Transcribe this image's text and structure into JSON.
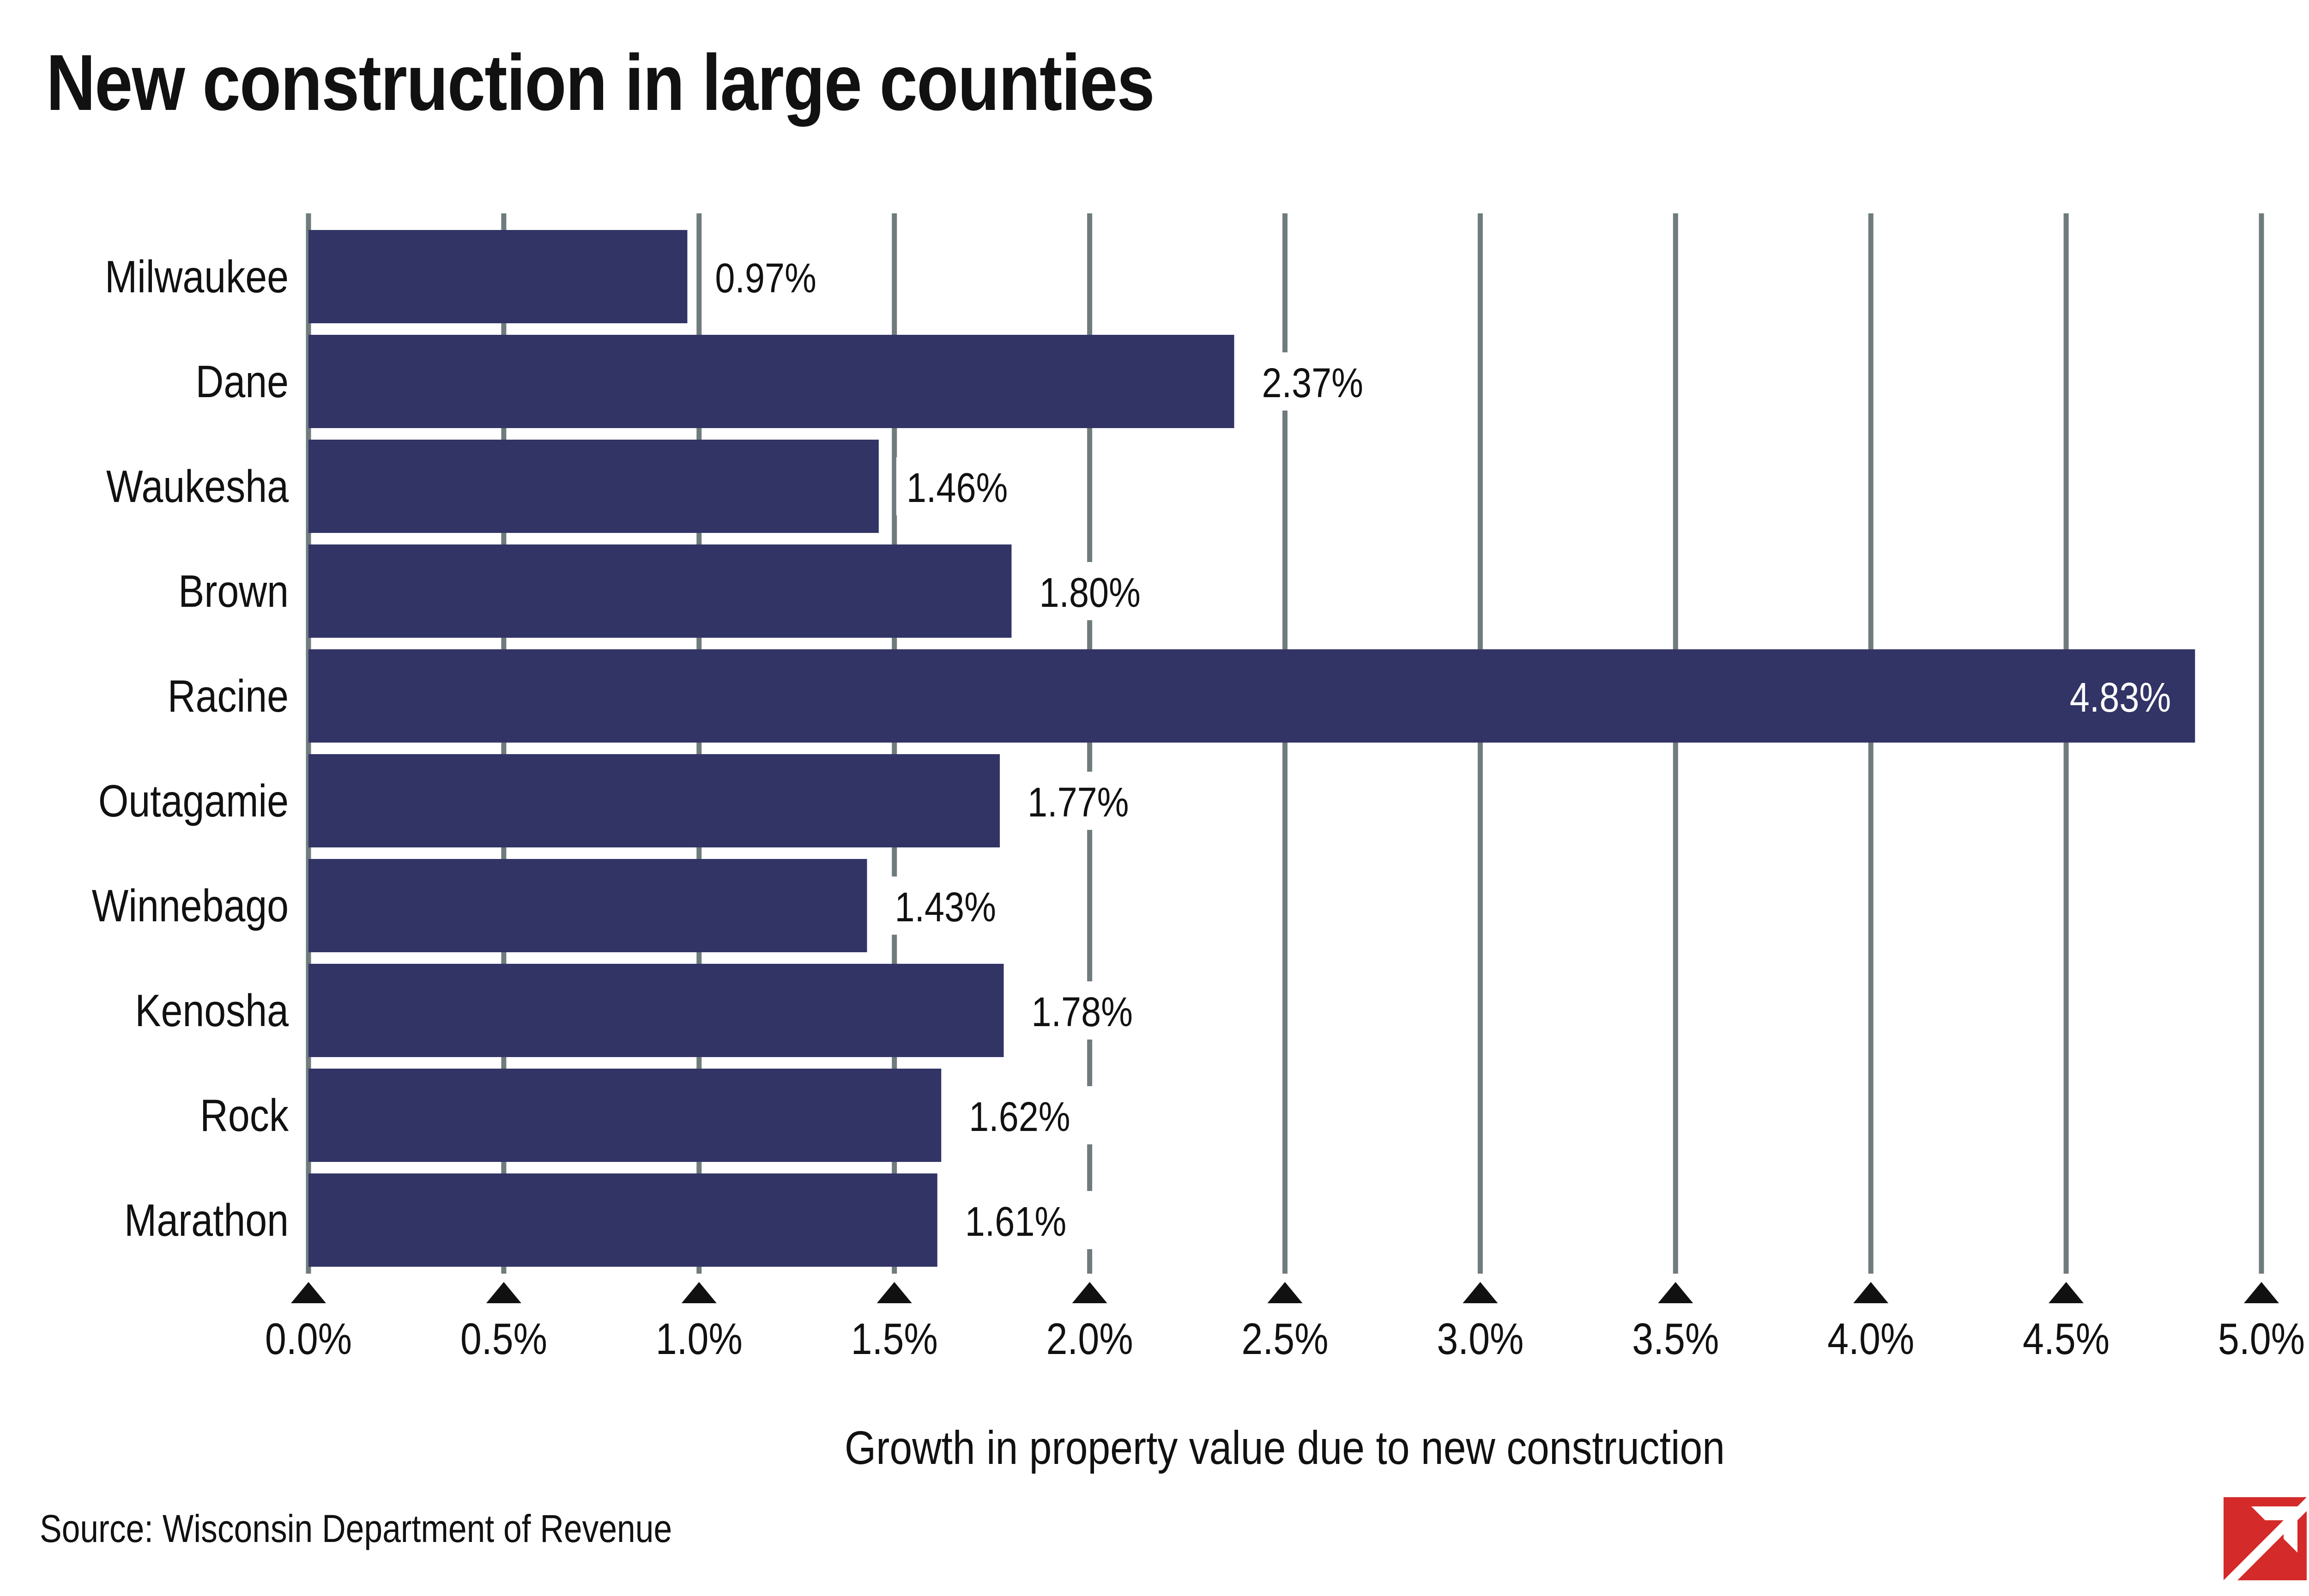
{
  "title": "New construction in large counties",
  "source": "Source: Wisconsin Department of Revenue",
  "colors": {
    "bar": "#323466",
    "grid": "#6f7b7d",
    "text": "#111111",
    "label_inside": "#ffffff",
    "logo_red": "#d42a2a"
  },
  "icons": {
    "logo": "diagonal-arrow-logo-icon"
  },
  "chart_data": {
    "type": "bar",
    "orientation": "horizontal",
    "title": "New construction in large counties",
    "xlabel": "Growth in property value due to new construction",
    "ylabel": "",
    "xlim": [
      0,
      5
    ],
    "xticks": [
      0,
      0.5,
      1,
      1.5,
      2,
      2.5,
      3,
      3.5,
      4,
      4.5,
      5
    ],
    "xtick_labels": [
      "0.0%",
      "0.5%",
      "1.0%",
      "1.5%",
      "2.0%",
      "2.5%",
      "3.0%",
      "3.5%",
      "4.0%",
      "4.5%",
      "5.0%"
    ],
    "categories": [
      "Milwaukee",
      "Dane",
      "Waukesha",
      "Brown",
      "Racine",
      "Outagamie",
      "Winnebago",
      "Kenosha",
      "Rock",
      "Marathon"
    ],
    "values": [
      0.97,
      2.37,
      1.46,
      1.8,
      4.83,
      1.77,
      1.43,
      1.78,
      1.62,
      1.61
    ],
    "value_labels": [
      "0.97%",
      "2.37%",
      "1.46%",
      "1.80%",
      "4.83%",
      "1.77%",
      "1.43%",
      "1.78%",
      "1.62%",
      "1.61%"
    ],
    "grid": true,
    "legend": "none"
  }
}
